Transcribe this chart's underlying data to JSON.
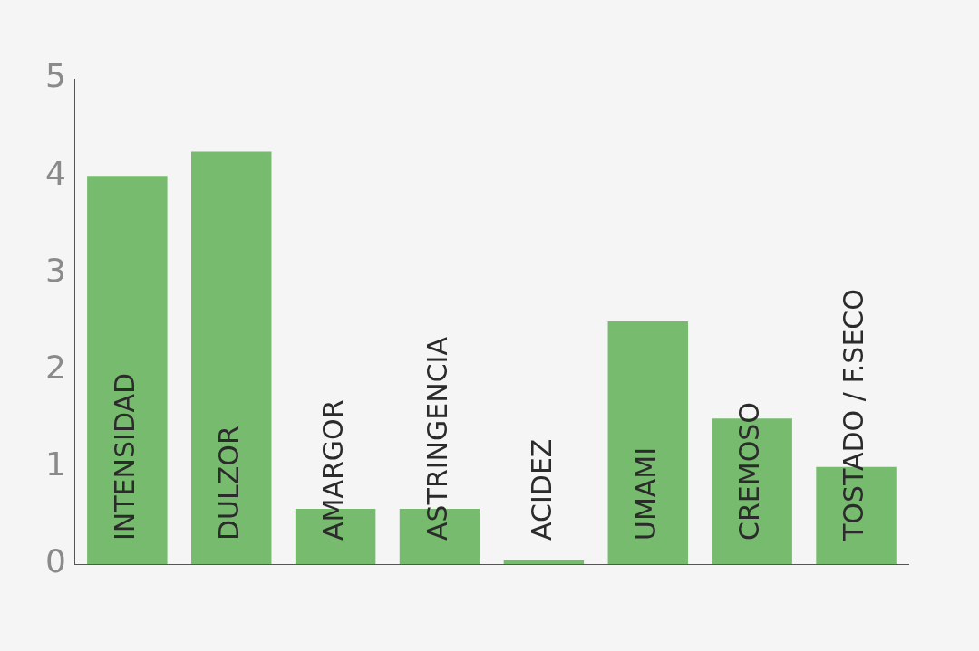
{
  "chart_data": {
    "type": "bar",
    "categories": [
      "INTENSIDAD",
      "DULZOR",
      "AMARGOR",
      "ASTRINGENCIA",
      "ACIDEZ",
      "UMAMI",
      "CREMOSO",
      "TOSTADO / F.SECO"
    ],
    "values": [
      4.0,
      4.25,
      0.57,
      0.57,
      0.04,
      2.5,
      1.5,
      1.0
    ],
    "color": "#77bb6f",
    "ylim": [
      0,
      5
    ],
    "yticks": [
      0,
      1,
      2,
      3,
      4,
      5
    ],
    "grid": false,
    "legend": false
  }
}
